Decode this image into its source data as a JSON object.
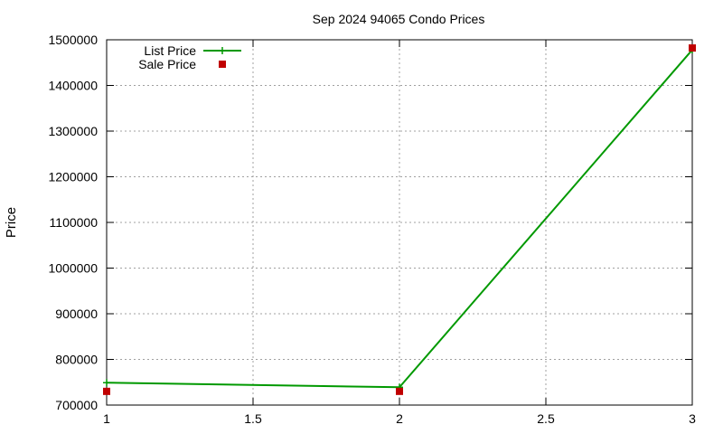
{
  "chart_data": {
    "type": "line",
    "title": "Sep 2024 94065 Condo Prices",
    "xlabel": "",
    "ylabel": "Price",
    "xlim": [
      1,
      3
    ],
    "ylim": [
      700000,
      1500000
    ],
    "xticks": [
      1,
      1.5,
      2,
      2.5,
      3
    ],
    "xtick_labels": [
      "1",
      "1.5",
      "2",
      "2.5",
      "3"
    ],
    "yticks": [
      700000,
      800000,
      900000,
      1000000,
      1100000,
      1200000,
      1300000,
      1400000,
      1500000
    ],
    "ytick_labels": [
      "700000",
      "800000",
      "900000",
      "1000000",
      "1100000",
      "1200000",
      "1300000",
      "1400000",
      "1500000"
    ],
    "grid": true,
    "legend_position": "top-left",
    "series": [
      {
        "name": "List Price",
        "style": "line with cross markers",
        "color": "#009900",
        "x": [
          1,
          2,
          3
        ],
        "y": [
          749000,
          739000,
          1478000
        ]
      },
      {
        "name": "Sale Price",
        "style": "square markers",
        "color": "#c00000",
        "x": [
          1,
          2,
          3
        ],
        "y": [
          730000,
          730000,
          1482000
        ]
      }
    ]
  }
}
